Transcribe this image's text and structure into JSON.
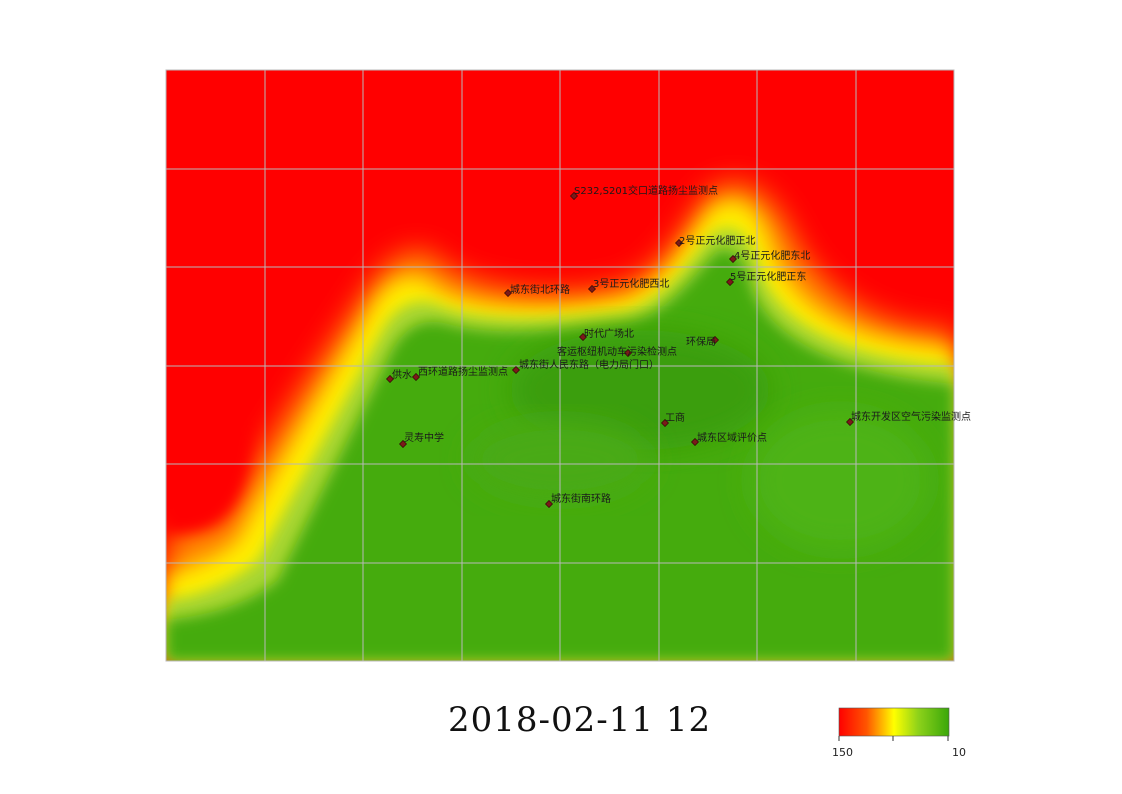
{
  "timestamp": "2018-02-11  12",
  "legend": {
    "left_value": "150",
    "right_value": "10",
    "colors": [
      "#ff0000",
      "#ff8800",
      "#ffff00",
      "#8ed21a",
      "#3aa70a"
    ]
  },
  "stations": [
    {
      "name": "S232,S201交口道路扬尘监测点"
    },
    {
      "name": "2号正元化肥正北"
    },
    {
      "name": "4号正元化肥东北"
    },
    {
      "name": "5号正元化肥正东"
    },
    {
      "name": "城东街北环路"
    },
    {
      "name": "3号正元化肥西北"
    },
    {
      "name": "时代广场北"
    },
    {
      "name": "环保局"
    },
    {
      "name": "客运枢纽机动车污染检测点"
    },
    {
      "name": "城东街人民东路（电力局门口）"
    },
    {
      "name": "供水"
    },
    {
      "name": "西环道路扬尘监测点"
    },
    {
      "name": "工商"
    },
    {
      "name": "城东开发区空气污染监测点"
    },
    {
      "name": "城东区域评价点"
    },
    {
      "name": "灵寿中学"
    },
    {
      "name": "城东街南环路"
    }
  ]
}
